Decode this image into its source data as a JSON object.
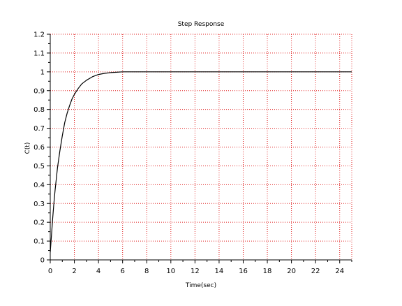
{
  "chart_data": {
    "type": "line",
    "title": "Step Response",
    "xlabel": "Time(sec)",
    "ylabel": "C(t)",
    "xlim": [
      0,
      25
    ],
    "ylim": [
      0,
      1.2
    ],
    "x_ticks": [
      0,
      2,
      4,
      6,
      8,
      10,
      12,
      14,
      16,
      18,
      20,
      22,
      24
    ],
    "y_ticks": [
      0,
      0.1,
      0.2,
      0.3,
      0.4,
      0.5,
      0.6,
      0.7,
      0.8,
      0.9,
      1,
      1.1,
      1.2
    ],
    "x_tick_labels": [
      "0",
      "2",
      "4",
      "6",
      "8",
      "10",
      "12",
      "14",
      "16",
      "18",
      "20",
      "22",
      "24"
    ],
    "y_tick_labels": [
      "0",
      "0.1",
      "0.2",
      "0.3",
      "0.4",
      "0.5",
      "0.6",
      "0.7",
      "0.8",
      "0.9",
      "1",
      "1.1",
      "1.2"
    ],
    "grid": true,
    "grid_color": "#e02020",
    "line_color": "#000000",
    "series": [
      {
        "x": [
          0,
          0.1,
          0.2,
          0.3,
          0.4,
          0.5,
          0.6,
          0.8,
          1.0,
          1.2,
          1.4,
          1.6,
          1.8,
          2.0,
          2.3,
          2.6,
          3.0,
          3.5,
          4.0,
          4.5,
          5.0,
          5.5,
          6.0,
          7.0,
          8.0,
          10.0,
          15.0,
          20.0,
          25.0
        ],
        "y": [
          0.04,
          0.13,
          0.22,
          0.3,
          0.37,
          0.43,
          0.49,
          0.58,
          0.66,
          0.73,
          0.78,
          0.82,
          0.855,
          0.88,
          0.91,
          0.935,
          0.955,
          0.974,
          0.986,
          0.992,
          0.996,
          0.998,
          1.0,
          1.0,
          1.0,
          1.0,
          1.0,
          1.0,
          1.0
        ]
      }
    ]
  }
}
